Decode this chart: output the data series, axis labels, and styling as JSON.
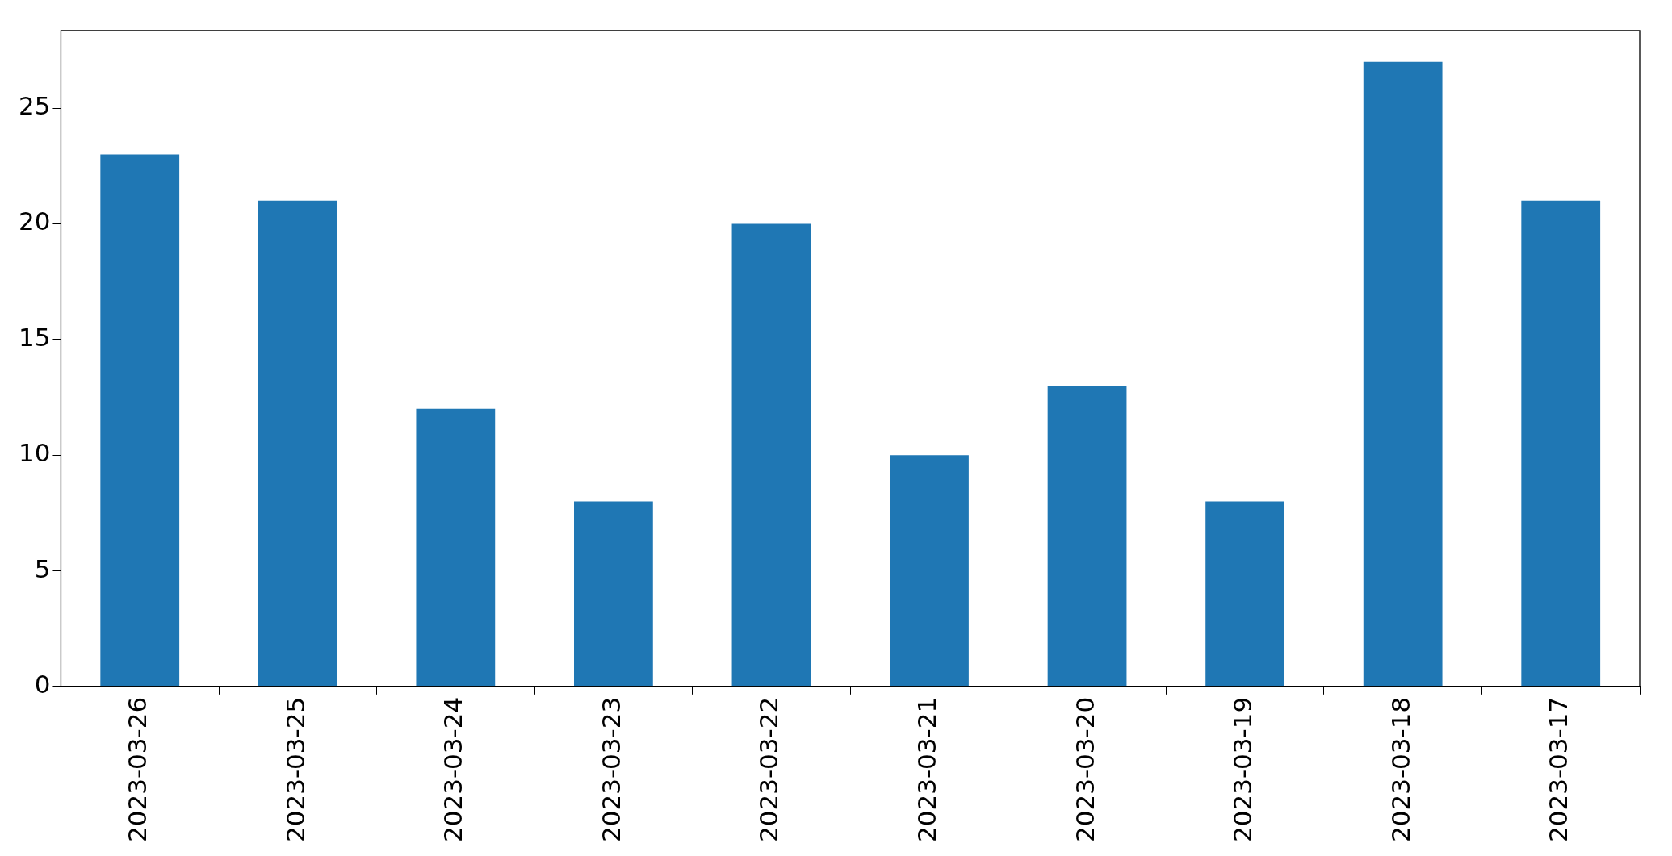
{
  "chart_data": {
    "type": "bar",
    "categories": [
      "2023-03-26",
      "2023-03-25",
      "2023-03-24",
      "2023-03-23",
      "2023-03-22",
      "2023-03-21",
      "2023-03-20",
      "2023-03-19",
      "2023-03-18",
      "2023-03-17"
    ],
    "values": [
      23,
      21,
      12,
      8,
      20,
      10,
      13,
      8,
      27,
      21
    ],
    "color": "#1f77b4",
    "ylim": [
      0,
      28.35
    ],
    "yticks": [
      0,
      5,
      10,
      15,
      20,
      25
    ]
  }
}
